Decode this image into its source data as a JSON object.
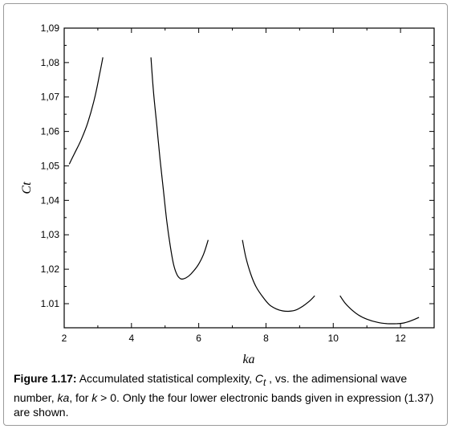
{
  "chart_data": {
    "type": "line",
    "xlabel": "ka",
    "ylabel": "Ct",
    "xlim": [
      2,
      13
    ],
    "ylim": [
      1.003,
      1.09
    ],
    "xticks": [
      2,
      4,
      6,
      8,
      10,
      12
    ],
    "xtick_labels": [
      "2",
      "4",
      "6",
      "8",
      "10",
      "12"
    ],
    "yticks": [
      1.01,
      1.02,
      1.03,
      1.04,
      1.05,
      1.06,
      1.07,
      1.08,
      1.09
    ],
    "ytick_labels": [
      "1.01",
      "1,02",
      "1,03",
      "1,04",
      "1,05",
      "1,06",
      "1,07",
      "1,08",
      "1,09"
    ],
    "grid": false,
    "line_color": "#000000",
    "series": [
      {
        "band": 1,
        "points": [
          [
            2.15,
            1.0505
          ],
          [
            2.3,
            1.0535
          ],
          [
            2.5,
            1.0575
          ],
          [
            2.7,
            1.0625
          ],
          [
            2.9,
            1.0695
          ],
          [
            3.05,
            1.0765
          ],
          [
            3.15,
            1.0815
          ]
        ]
      },
      {
        "band": 2,
        "points": [
          [
            4.58,
            1.0815
          ],
          [
            4.65,
            1.072
          ],
          [
            4.75,
            1.062
          ],
          [
            4.85,
            1.052
          ],
          [
            4.95,
            1.043
          ],
          [
            5.05,
            1.034
          ],
          [
            5.15,
            1.027
          ],
          [
            5.25,
            1.0215
          ],
          [
            5.35,
            1.0185
          ],
          [
            5.45,
            1.0173
          ],
          [
            5.55,
            1.0172
          ],
          [
            5.7,
            1.018
          ],
          [
            5.85,
            1.0195
          ],
          [
            6.0,
            1.0215
          ],
          [
            6.15,
            1.0245
          ],
          [
            6.28,
            1.0285
          ]
        ]
      },
      {
        "band": 3,
        "points": [
          [
            7.3,
            1.0285
          ],
          [
            7.4,
            1.0235
          ],
          [
            7.55,
            1.0185
          ],
          [
            7.7,
            1.015
          ],
          [
            7.9,
            1.012
          ],
          [
            8.1,
            1.0097
          ],
          [
            8.3,
            1.0085
          ],
          [
            8.5,
            1.0079
          ],
          [
            8.7,
            1.0078
          ],
          [
            8.9,
            1.0082
          ],
          [
            9.1,
            1.0093
          ],
          [
            9.3,
            1.0108
          ],
          [
            9.45,
            1.0123
          ]
        ]
      },
      {
        "band": 4,
        "points": [
          [
            10.2,
            1.0123
          ],
          [
            10.35,
            1.0102
          ],
          [
            10.55,
            1.0082
          ],
          [
            10.75,
            1.0067
          ],
          [
            11.0,
            1.0055
          ],
          [
            11.3,
            1.0046
          ],
          [
            11.6,
            1.0042
          ],
          [
            11.9,
            1.0042
          ],
          [
            12.1,
            1.0044
          ],
          [
            12.3,
            1.005
          ],
          [
            12.55,
            1.006
          ]
        ]
      }
    ]
  },
  "caption": {
    "label": "Figure 1.17:",
    "p1": " Accumulated statistical complexity, ",
    "sym_c": "C",
    "sym_t": "t",
    "p2": " , vs. the adimensional wave number, ",
    "ka": "ka",
    "p3": ", for ",
    "k": "k",
    "p4": " > 0. Only the four lower electronic bands given in expression (1.37) are shown."
  }
}
